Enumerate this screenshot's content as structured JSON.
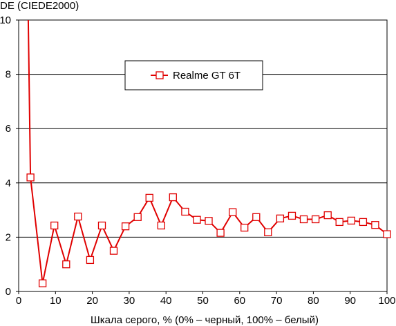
{
  "chart_data": {
    "type": "line",
    "title": "",
    "ylabel": "DE (CIEDE2000)",
    "xlabel": "Шкала серого, % (0% – черный, 100% – белый)",
    "xlim": [
      0,
      100
    ],
    "ylim": [
      0,
      10
    ],
    "xticks": [
      0,
      10,
      20,
      30,
      40,
      50,
      60,
      70,
      80,
      90,
      100
    ],
    "yticks": [
      0,
      2,
      4,
      6,
      8,
      10
    ],
    "grid": "horizontal",
    "legend_position": "top-center",
    "series": [
      {
        "name": "Realme GT 6T",
        "color": "#e00000",
        "marker": "open-square",
        "off_scale_start": {
          "x": 2.4,
          "y": 12
        },
        "points": [
          [
            3.2,
            4.2
          ],
          [
            6.5,
            0.3
          ],
          [
            9.7,
            2.43
          ],
          [
            12.9,
            1.0
          ],
          [
            16.1,
            2.76
          ],
          [
            19.4,
            1.16
          ],
          [
            22.6,
            2.43
          ],
          [
            25.8,
            1.5
          ],
          [
            29.0,
            2.4
          ],
          [
            32.3,
            2.74
          ],
          [
            35.5,
            3.45
          ],
          [
            38.7,
            2.43
          ],
          [
            41.9,
            3.47
          ],
          [
            45.2,
            2.94
          ],
          [
            48.4,
            2.64
          ],
          [
            51.6,
            2.6
          ],
          [
            54.8,
            2.16
          ],
          [
            58.1,
            2.92
          ],
          [
            61.3,
            2.35
          ],
          [
            64.5,
            2.74
          ],
          [
            67.7,
            2.18
          ],
          [
            71.0,
            2.69
          ],
          [
            74.2,
            2.79
          ],
          [
            77.4,
            2.66
          ],
          [
            80.6,
            2.66
          ],
          [
            83.9,
            2.81
          ],
          [
            87.1,
            2.56
          ],
          [
            90.3,
            2.61
          ],
          [
            93.5,
            2.56
          ],
          [
            96.8,
            2.45
          ],
          [
            100.0,
            2.11
          ]
        ]
      }
    ]
  }
}
